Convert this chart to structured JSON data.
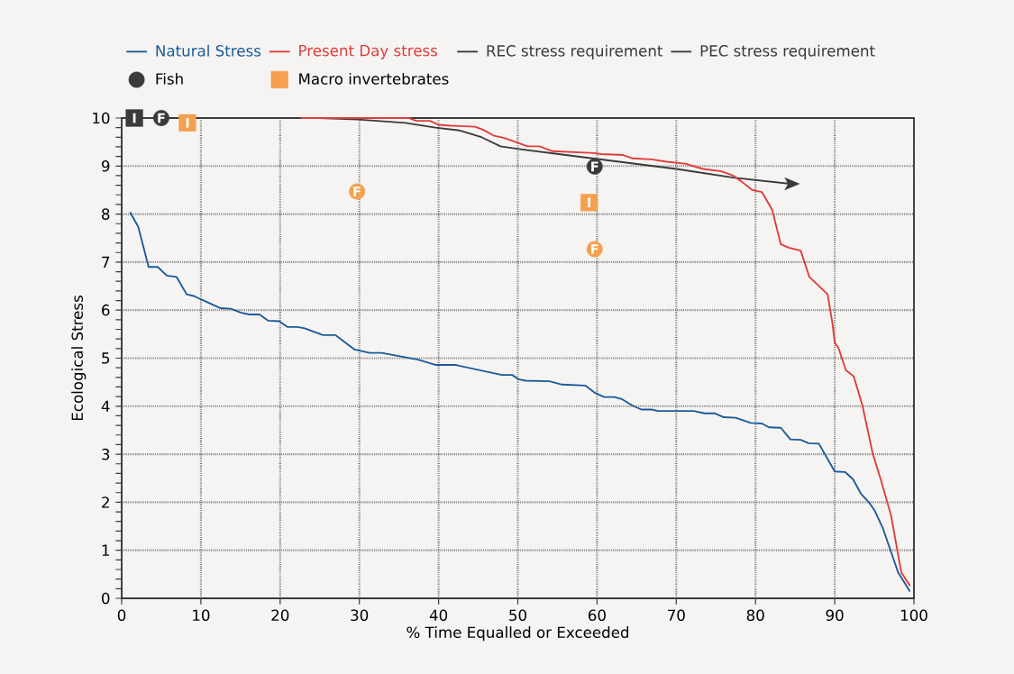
{
  "chart_data": {
    "type": "line",
    "xlabel": "% Time Equalled or Exceeded",
    "ylabel": "Ecological Stress",
    "xlim": [
      0,
      100
    ],
    "ylim": [
      0,
      10
    ],
    "xticks": [
      0,
      10,
      20,
      30,
      40,
      50,
      60,
      70,
      80,
      90,
      100
    ],
    "yticks": [
      0,
      1,
      2,
      3,
      4,
      5,
      6,
      7,
      8,
      9,
      10
    ],
    "grid": true,
    "legend": "top left",
    "series": [
      {
        "name": "Natural Stress",
        "color": "#1b5a9a",
        "x": [
          1.06,
          2.08,
          3.4,
          4.55,
          5.7,
          6.94,
          8.2,
          9.2,
          10.05,
          12.5,
          13.8,
          15.0,
          16.1,
          17.4,
          18.5,
          19.9,
          20.9,
          22.2,
          23.1,
          25.4,
          27.0,
          29.4,
          31.3,
          32.8,
          37.4,
          39.6,
          42.1,
          48.0,
          49.3,
          50.1,
          51.0,
          54.0,
          55.6,
          58.5,
          59.7,
          60.9,
          62.2,
          63.1,
          64.5,
          65.6,
          66.9,
          67.7,
          72.2,
          73.6,
          74.9,
          76.0,
          77.5,
          79.4,
          80.8,
          81.7,
          83.2,
          84.4,
          85.7,
          86.7,
          88.0,
          90.0,
          91.3,
          92.3,
          93.3,
          94.4,
          95.0,
          96.1,
          98.0,
          99.5
        ],
        "values": [
          8.04,
          7.74,
          6.9,
          6.9,
          6.72,
          6.69,
          6.33,
          6.29,
          6.22,
          6.04,
          6.03,
          5.95,
          5.91,
          5.91,
          5.78,
          5.77,
          5.65,
          5.65,
          5.62,
          5.48,
          5.48,
          5.18,
          5.11,
          5.11,
          4.97,
          4.86,
          4.86,
          4.65,
          4.65,
          4.56,
          4.53,
          4.52,
          4.45,
          4.43,
          4.28,
          4.19,
          4.19,
          4.15,
          4.01,
          3.93,
          3.93,
          3.9,
          3.9,
          3.85,
          3.85,
          3.77,
          3.76,
          3.65,
          3.64,
          3.56,
          3.55,
          3.31,
          3.3,
          3.23,
          3.22,
          2.64,
          2.63,
          2.48,
          2.18,
          1.98,
          1.84,
          1.45,
          0.54,
          0.14
        ]
      },
      {
        "name": "Present Day stress",
        "color": "#e03c3c",
        "x": [
          22.6,
          36.2,
          37.2,
          38.9,
          40.0,
          41.5,
          44.6,
          45.7,
          47.0,
          48.2,
          49.9,
          51.2,
          52.7,
          54.4,
          59.7,
          60.5,
          63.3,
          64.5,
          66.9,
          68.8,
          71.1,
          73.4,
          75.7,
          77.2,
          78.3,
          79.6,
          80.8,
          82.1,
          83.2,
          84.2,
          85.7,
          86.8,
          89.1,
          89.7,
          90.0,
          90.5,
          91.4,
          92.4,
          93.5,
          94.8,
          95.8,
          97.1,
          98.4,
          99.5
        ],
        "values": [
          10,
          10,
          9.94,
          9.94,
          9.86,
          9.84,
          9.82,
          9.75,
          9.63,
          9.59,
          9.49,
          9.41,
          9.41,
          9.31,
          9.27,
          9.25,
          9.23,
          9.16,
          9.14,
          9.09,
          9.05,
          8.94,
          8.89,
          8.8,
          8.67,
          8.5,
          8.46,
          8.09,
          7.37,
          7.3,
          7.24,
          6.69,
          6.33,
          5.74,
          5.33,
          5.2,
          4.75,
          4.62,
          4.01,
          3.01,
          2.48,
          1.73,
          0.54,
          0.26
        ]
      },
      {
        "name": "REC stress requirement",
        "color": "#3a3a3a",
        "x": [
          0,
          25,
          29.8,
          35.8,
          39.6,
          42.7,
          45.3,
          47.8,
          49.9,
          55.6,
          70.0,
          77.2,
          84.4
        ],
        "values": [
          10,
          10,
          9.97,
          9.9,
          9.8,
          9.74,
          9.61,
          9.41,
          9.36,
          9.24,
          8.94,
          8.76,
          8.63
        ]
      },
      {
        "name": "PEC stress requirement",
        "color": "#3a3a3a"
      },
      {
        "name": "Fish",
        "type": "scatter",
        "marker": "circle",
        "color": "#3a3a3a",
        "x": [
          5.0,
          29.7,
          59.7,
          59.7
        ],
        "values": [
          10,
          8.47,
          8.99,
          7.27
        ],
        "colors": [
          "#3a3a3a",
          "#f4a04f",
          "#3a3a3a",
          "#f4a04f"
        ]
      },
      {
        "name": "Macro invertebrates",
        "type": "scatter",
        "marker": "square",
        "color": "#f4a04f",
        "x": [
          1.6,
          8.3,
          59.0
        ],
        "values": [
          10,
          9.9,
          8.24
        ],
        "colors": [
          "#3a3a3a",
          "#f4a04f",
          "#f4a04f"
        ]
      }
    ],
    "annotations": [
      {
        "text": "F",
        "x": 5.0,
        "y": 10
      },
      {
        "text": "F",
        "x": 29.7,
        "y": 8.47
      },
      {
        "text": "F",
        "x": 59.7,
        "y": 8.99
      },
      {
        "text": "F",
        "x": 59.7,
        "y": 7.27
      },
      {
        "text": "I",
        "x": 1.6,
        "y": 10
      },
      {
        "text": "I",
        "x": 8.3,
        "y": 9.9
      },
      {
        "text": "I",
        "x": 59.0,
        "y": 8.24
      }
    ]
  }
}
